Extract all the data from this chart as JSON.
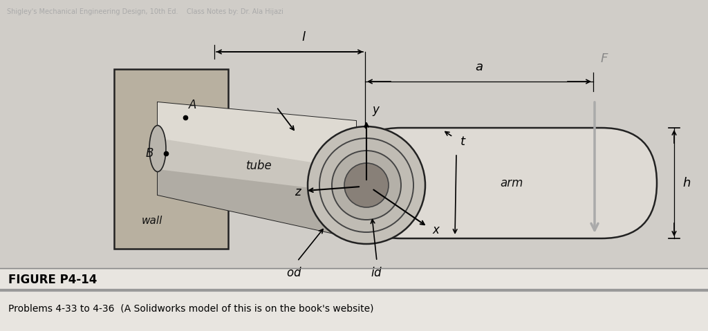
{
  "bg_color": "#d0cdc8",
  "diagram_bg": "#d8d5d0",
  "wall_fill": "#b8b0a0",
  "wall_edge": "#222222",
  "tube_fill_light": "#d8d4cc",
  "tube_fill_dark": "#b0a898",
  "arm_fill": "#dedad4",
  "arm_edge": "#222222",
  "circle_outer_fill": "#b8b4ac",
  "circle_mid_fill": "#c0bcb4",
  "circle_inner_fill": "#a8a49c",
  "circle_core_fill": "#787068",
  "label_color": "#111111",
  "arrow_color": "#222222",
  "F_arrow_color": "#999999",
  "dim_color": "#333333",
  "title_text": "FIGURE P4-14",
  "subtitle_text": "Problems 4-33 to 4-36  (A Solidworks model of this is on the book's website)",
  "header_text": "Shigley's Mechanical Engineering Design, 10th Ed.    Class Notes by: Dr. Ala Hijazi",
  "footer_sep_color": "#aaaaaa",
  "bottom_bg": "#e8e5e0"
}
